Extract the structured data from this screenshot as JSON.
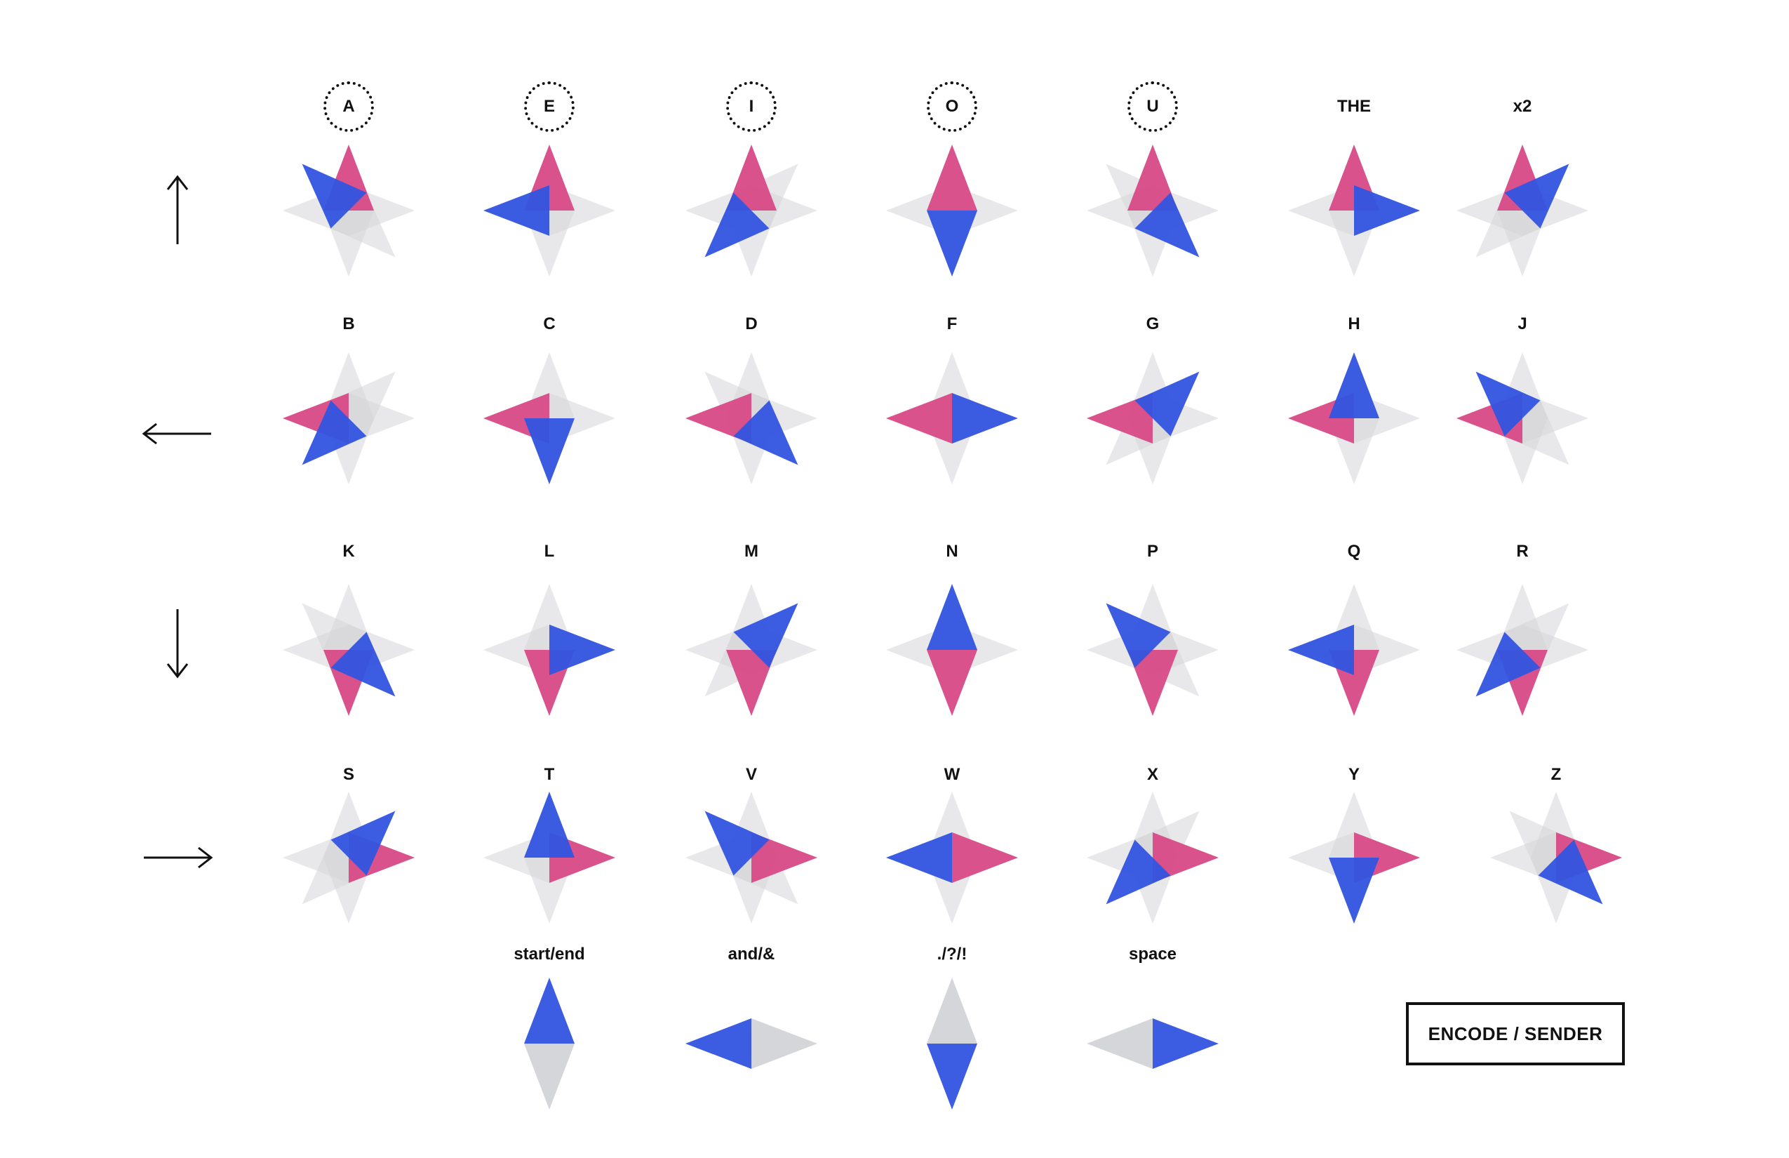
{
  "colors": {
    "left_flag": "#d94a86",
    "right_flag": "#3154e0",
    "ghost": "#d5d6d9",
    "ink": "#111111"
  },
  "rows": [
    {
      "arrow": "up-arrow-icon",
      "glyphs": [
        {
          "label": "A",
          "vowel": true,
          "left": "N",
          "right": "NW"
        },
        {
          "label": "E",
          "vowel": true,
          "left": "N",
          "right": "W"
        },
        {
          "label": "I",
          "vowel": true,
          "left": "N",
          "right": "SW"
        },
        {
          "label": "O",
          "vowel": true,
          "left": "N",
          "right": "S"
        },
        {
          "label": "U",
          "vowel": true,
          "left": "N",
          "right": "SE"
        },
        {
          "label": "THE",
          "vowel": false,
          "left": "N",
          "right": "E"
        },
        {
          "label": "x2",
          "vowel": false,
          "left": "N",
          "right": "NE"
        }
      ]
    },
    {
      "arrow": "left-arrow-icon",
      "glyphs": [
        {
          "label": "B",
          "left": "W",
          "right": "SW"
        },
        {
          "label": "C",
          "left": "W",
          "right": "S"
        },
        {
          "label": "D",
          "left": "W",
          "right": "SE"
        },
        {
          "label": "F",
          "left": "W",
          "right": "E"
        },
        {
          "label": "G",
          "left": "W",
          "right": "NE"
        },
        {
          "label": "H",
          "left": "W",
          "right": "N"
        },
        {
          "label": "J",
          "left": "W",
          "right": "NW"
        }
      ]
    },
    {
      "arrow": "down-arrow-icon",
      "glyphs": [
        {
          "label": "K",
          "left": "S",
          "right": "SE"
        },
        {
          "label": "L",
          "left": "S",
          "right": "E"
        },
        {
          "label": "M",
          "left": "S",
          "right": "NE"
        },
        {
          "label": "N",
          "left": "S",
          "right": "N"
        },
        {
          "label": "P",
          "left": "S",
          "right": "NW"
        },
        {
          "label": "Q",
          "left": "S",
          "right": "W"
        },
        {
          "label": "R",
          "left": "S",
          "right": "SW"
        }
      ]
    },
    {
      "arrow": "right-arrow-icon",
      "glyphs": [
        {
          "label": "S",
          "left": "E",
          "right": "NE"
        },
        {
          "label": "T",
          "left": "E",
          "right": "N"
        },
        {
          "label": "V",
          "left": "E",
          "right": "NW"
        },
        {
          "label": "W",
          "left": "E",
          "right": "W"
        },
        {
          "label": "X",
          "left": "E",
          "right": "SW"
        },
        {
          "label": "Y",
          "left": "E",
          "right": "S"
        },
        {
          "label": "Z",
          "left": "E",
          "right": "SE"
        }
      ]
    },
    {
      "arrow": "",
      "glyphs": [
        {
          "label": "start/end",
          "left": "S",
          "right": "N",
          "left_gray": true
        },
        {
          "label": "and/&",
          "left": "E",
          "right": "W",
          "left_gray": true
        },
        {
          "label": "./?/!",
          "left": "N",
          "right": "S",
          "left_gray": true
        },
        {
          "label": "space",
          "left": "W",
          "right": "E",
          "left_gray": true
        }
      ]
    }
  ],
  "encode_button": {
    "label": "ENCODE / SENDER"
  }
}
